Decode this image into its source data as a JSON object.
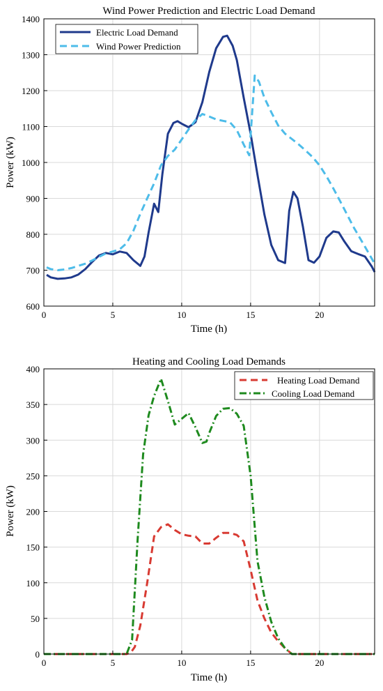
{
  "colors": {
    "electric": "#1f3a8c",
    "wind": "#4dbce9",
    "heating": "#d83a32",
    "cooling": "#1e8a1e",
    "grid": "#d9d9d9",
    "axis": "#000000"
  },
  "chart_data": [
    {
      "type": "line",
      "title": "Wind Power Prediction and Electric Load Demand",
      "xlabel": "Time (h)",
      "ylabel": "Power (kW)",
      "xlim": [
        0,
        24
      ],
      "ylim": [
        600,
        1400
      ],
      "xticks": [
        0,
        5,
        10,
        15,
        20
      ],
      "yticks": [
        600,
        700,
        800,
        900,
        1000,
        1100,
        1200,
        1300,
        1400
      ],
      "grid": true,
      "legend_position": "top-left",
      "series": [
        {
          "name": "Electric Load Demand",
          "style": "solid",
          "color": "#1f3a8c",
          "x": [
            0.2,
            0.5,
            1.0,
            1.5,
            2.0,
            2.5,
            3.0,
            3.5,
            4.0,
            4.5,
            5.0,
            5.5,
            6.0,
            6.5,
            7.0,
            7.3,
            7.6,
            8.0,
            8.3,
            8.6,
            9.0,
            9.4,
            9.7,
            10.0,
            10.5,
            11.0,
            11.5,
            12.0,
            12.5,
            13.0,
            13.3,
            13.7,
            14.0,
            14.5,
            15.0,
            15.5,
            16.0,
            16.5,
            17.0,
            17.5,
            17.8,
            18.1,
            18.4,
            18.8,
            19.2,
            19.6,
            20.0,
            20.5,
            21.0,
            21.4,
            21.8,
            22.3,
            22.8,
            23.3,
            23.8,
            24.0
          ],
          "y": [
            687,
            680,
            676,
            677,
            680,
            688,
            703,
            723,
            741,
            748,
            744,
            752,
            748,
            728,
            712,
            738,
            805,
            885,
            862,
            968,
            1080,
            1110,
            1115,
            1108,
            1098,
            1112,
            1168,
            1252,
            1318,
            1350,
            1353,
            1325,
            1285,
            1180,
            1080,
            965,
            855,
            770,
            728,
            720,
            865,
            918,
            900,
            820,
            728,
            721,
            738,
            790,
            808,
            805,
            780,
            753,
            745,
            738,
            710,
            695
          ]
        },
        {
          "name": "Wind Power Prediction",
          "style": "dashed",
          "color": "#4dbce9",
          "x": [
            0.2,
            0.5,
            1.0,
            1.5,
            2.0,
            2.5,
            3.0,
            3.5,
            4.0,
            4.5,
            5.0,
            5.5,
            6.0,
            6.5,
            7.0,
            7.5,
            8.0,
            8.5,
            9.0,
            9.5,
            10.0,
            10.5,
            11.0,
            11.5,
            12.0,
            12.5,
            13.0,
            13.5,
            14.0,
            14.5,
            14.9,
            15.3,
            15.6,
            16.0,
            16.5,
            17.0,
            17.5,
            18.0,
            18.5,
            19.0,
            19.5,
            20.0,
            20.5,
            21.0,
            21.5,
            22.0,
            22.5,
            23.0,
            23.5,
            24.0
          ],
          "y": [
            708,
            703,
            700,
            702,
            706,
            712,
            718,
            727,
            737,
            747,
            752,
            758,
            775,
            810,
            857,
            900,
            942,
            992,
            1018,
            1036,
            1064,
            1092,
            1118,
            1135,
            1128,
            1120,
            1116,
            1112,
            1090,
            1050,
            1020,
            1242,
            1225,
            1180,
            1140,
            1103,
            1080,
            1065,
            1050,
            1033,
            1015,
            992,
            962,
            928,
            892,
            855,
            818,
            785,
            752,
            718
          ]
        }
      ]
    },
    {
      "type": "line",
      "title": "Heating and Cooling Load Demands",
      "xlabel": "Time (h)",
      "ylabel": "Power (kW)",
      "xlim": [
        0,
        24
      ],
      "ylim": [
        0,
        400
      ],
      "xticks": [
        0,
        5,
        10,
        15,
        20
      ],
      "yticks": [
        0,
        50,
        100,
        150,
        200,
        250,
        300,
        350,
        400
      ],
      "grid": true,
      "legend_position": "top-right",
      "series": [
        {
          "name": "Heating Load Demand",
          "style": "dashed",
          "color": "#d83a32",
          "x": [
            0,
            1,
            2,
            3,
            4,
            5,
            6,
            6.3,
            6.6,
            7.0,
            7.5,
            8.0,
            8.5,
            9.0,
            9.5,
            10.0,
            10.5,
            11.0,
            11.5,
            12.0,
            12.5,
            13.0,
            13.5,
            14.0,
            14.5,
            15.0,
            15.5,
            16.0,
            16.5,
            17.0,
            17.5,
            18.0,
            19,
            20,
            21,
            22,
            23,
            24
          ],
          "y": [
            0,
            0,
            0,
            0,
            0,
            0,
            0,
            2,
            10,
            40,
            100,
            165,
            178,
            182,
            174,
            168,
            166,
            165,
            155,
            155,
            163,
            170,
            170,
            167,
            158,
            118,
            75,
            50,
            30,
            18,
            8,
            0,
            0,
            0,
            0,
            0,
            0,
            0
          ]
        },
        {
          "name": "Cooling Load Demand",
          "style": "dash-dot",
          "color": "#1e8a1e",
          "x": [
            0,
            1,
            2,
            3,
            4,
            5,
            6,
            6.4,
            6.8,
            7.2,
            7.6,
            8.0,
            8.5,
            9.0,
            9.5,
            10.0,
            10.5,
            11.0,
            11.5,
            11.8,
            12.0,
            12.5,
            13.0,
            13.5,
            14.0,
            14.5,
            15.0,
            15.5,
            16.0,
            16.5,
            17.0,
            17.5,
            18.0,
            19,
            20,
            21,
            22,
            23,
            24
          ],
          "y": [
            0,
            0,
            0,
            0,
            0,
            0,
            0,
            20,
            160,
            280,
            335,
            362,
            386,
            355,
            322,
            330,
            338,
            318,
            296,
            298,
            310,
            334,
            344,
            345,
            337,
            320,
            250,
            130,
            80,
            45,
            22,
            8,
            0,
            0,
            0,
            0,
            0,
            0,
            0
          ]
        }
      ]
    }
  ]
}
